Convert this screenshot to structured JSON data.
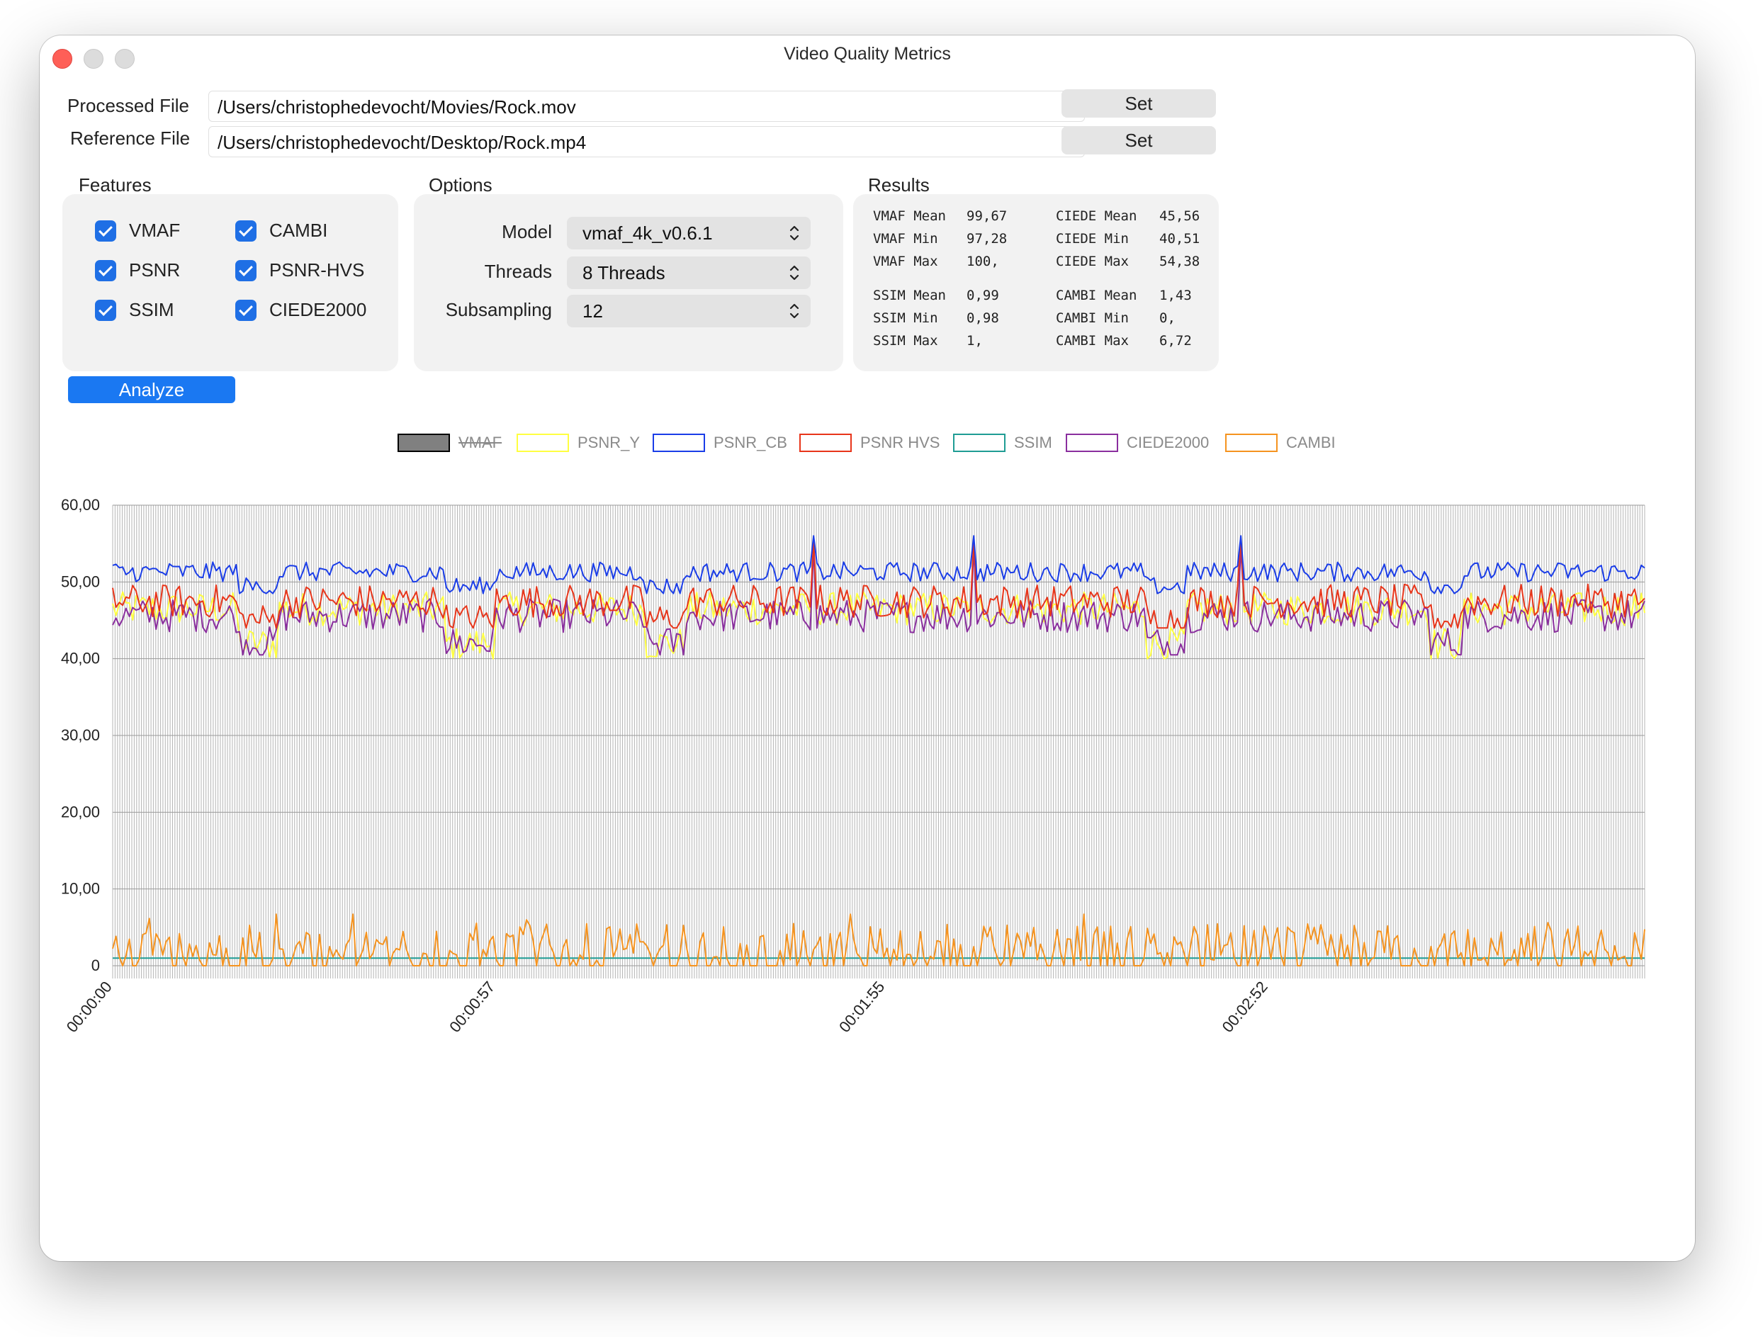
{
  "window": {
    "title": "Video Quality Metrics"
  },
  "files": {
    "processed_label": "Processed File",
    "processed_value": "/Users/christophedevocht/Movies/Rock.mov",
    "reference_label": "Reference File",
    "reference_value": "/Users/christophedevocht/Desktop/Rock.mp4",
    "set_label": "Set"
  },
  "features": {
    "title": "Features",
    "items": [
      {
        "label": "VMAF",
        "checked": true
      },
      {
        "label": "CAMBI",
        "checked": true
      },
      {
        "label": "PSNR",
        "checked": true
      },
      {
        "label": "PSNR-HVS",
        "checked": true
      },
      {
        "label": "SSIM",
        "checked": true
      },
      {
        "label": "CIEDE2000",
        "checked": true
      }
    ]
  },
  "options": {
    "title": "Options",
    "model_label": "Model",
    "model_value": "vmaf_4k_v0.6.1",
    "threads_label": "Threads",
    "threads_value": "8 Threads",
    "subsampling_label": "Subsampling",
    "subsampling_value": "12"
  },
  "results": {
    "title": "Results",
    "left": [
      [
        "VMAF Mean",
        "99,67"
      ],
      [
        "VMAF Min",
        "97,28"
      ],
      [
        "VMAF Max",
        "100,"
      ],
      [
        "SSIM Mean",
        "0,99"
      ],
      [
        "SSIM Min",
        "0,98"
      ],
      [
        "SSIM Max",
        "1,"
      ]
    ],
    "right": [
      [
        "CIEDE Mean",
        "45,56"
      ],
      [
        "CIEDE Min",
        "40,51"
      ],
      [
        "CIEDE Max",
        "54,38"
      ],
      [
        "CAMBI Mean",
        "1,43"
      ],
      [
        "CAMBI Min",
        "0,"
      ],
      [
        "CAMBI Max",
        "6,72"
      ]
    ]
  },
  "analyze_label": "Analyze",
  "chart_data": {
    "type": "line",
    "legend": [
      {
        "name": "VMAF",
        "color": "#808080",
        "hidden": true
      },
      {
        "name": "PSNR_Y",
        "color": "#ffff40"
      },
      {
        "name": "PSNR_CB",
        "color": "#1a3de8"
      },
      {
        "name": "PSNR HVS",
        "color": "#e8351a"
      },
      {
        "name": "SSIM",
        "color": "#1f9c94"
      },
      {
        "name": "CIEDE2000",
        "color": "#8a2e9e"
      },
      {
        "name": "CAMBI",
        "color": "#f5931f"
      }
    ],
    "ylim": [
      0,
      60
    ],
    "y_ticks": [
      "0",
      "10,00",
      "20,00",
      "30,00",
      "40,00",
      "50,00",
      "60,00"
    ],
    "x_ticks": [
      "00:00:00",
      "00:00:57",
      "00:01:55",
      "00:02:52"
    ],
    "x_tick_seconds": [
      0,
      57,
      115,
      172
    ],
    "duration_seconds": 228,
    "grid": true,
    "series": [
      {
        "name": "PSNR_CB",
        "approx_mean": 51.3,
        "approx_min": 48.5,
        "approx_max": 56
      },
      {
        "name": "PSNR HVS",
        "approx_mean": 47.5,
        "approx_min": 44,
        "approx_max": 55.5
      },
      {
        "name": "CIEDE2000",
        "approx_mean": 45.6,
        "approx_min": 40.5,
        "approx_max": 54.4
      },
      {
        "name": "PSNR_Y",
        "approx_mean": 46.5,
        "approx_min": 40,
        "approx_max": 55
      },
      {
        "name": "SSIM",
        "approx_mean": 0.99,
        "approx_min": 0.98,
        "approx_max": 1
      },
      {
        "name": "CAMBI",
        "approx_mean": 1.43,
        "approx_min": 0,
        "approx_max": 6.72
      }
    ]
  }
}
